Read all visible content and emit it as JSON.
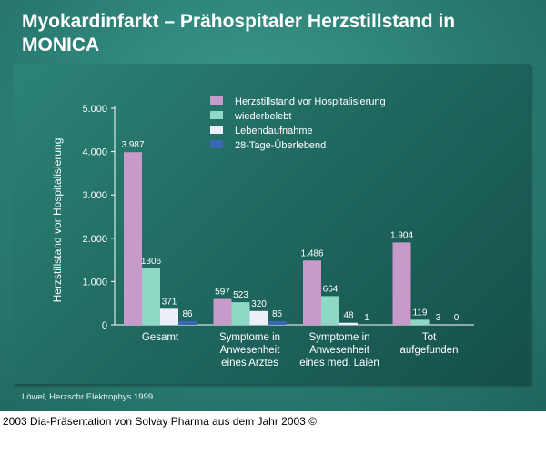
{
  "title": "Myokardinfarkt – Prähospitaler Herzstillstand in MONICA",
  "source": "Löwel, Herzschr Elektrophys 1999",
  "caption": "2003 Dia-Präsentation von Solvay Pharma aus dem Jahr 2003 ©",
  "colors": {
    "background": "#2a7d73",
    "panel": "#206a61",
    "text": "#ffffff"
  },
  "chart_data": {
    "type": "bar",
    "ylabel": "Herzstillstand vor Hospitalisierung",
    "ylim": [
      0,
      5000
    ],
    "yticks": [
      0,
      1000,
      2000,
      3000,
      4000,
      5000
    ],
    "ytick_labels": [
      "0",
      "1.000",
      "2.000",
      "3.000",
      "4.000",
      "5.000"
    ],
    "legend_position": "top-right",
    "categories": [
      [
        "Gesamt"
      ],
      [
        "Symptome in",
        "Anwesenheit",
        "eines Arztes"
      ],
      [
        "Symptome in",
        "Anwesenheit",
        "eines med. Laien"
      ],
      [
        "Tot",
        "aufgefunden"
      ]
    ],
    "series": [
      {
        "name": "Herzstillstand vor Hospitalisierung",
        "color": "#c79ac9",
        "values": [
          3987,
          597,
          1486,
          1904
        ],
        "labels": [
          "3.987",
          "597",
          "1.486",
          "1.904"
        ]
      },
      {
        "name": "wiederbelebt",
        "color": "#8ed8c4",
        "values": [
          1306,
          523,
          664,
          119
        ],
        "labels": [
          "1306",
          "523",
          "664",
          "119"
        ]
      },
      {
        "name": "Lebendaufnahme",
        "color": "#eceef8",
        "values": [
          371,
          320,
          48,
          3
        ],
        "labels": [
          "371",
          "320",
          "48",
          "3"
        ]
      },
      {
        "name": "28-Tage-Überlebend",
        "color": "#3a67b8",
        "values": [
          86,
          85,
          1,
          0
        ],
        "labels": [
          "86",
          "85",
          "1",
          "0"
        ]
      }
    ]
  }
}
